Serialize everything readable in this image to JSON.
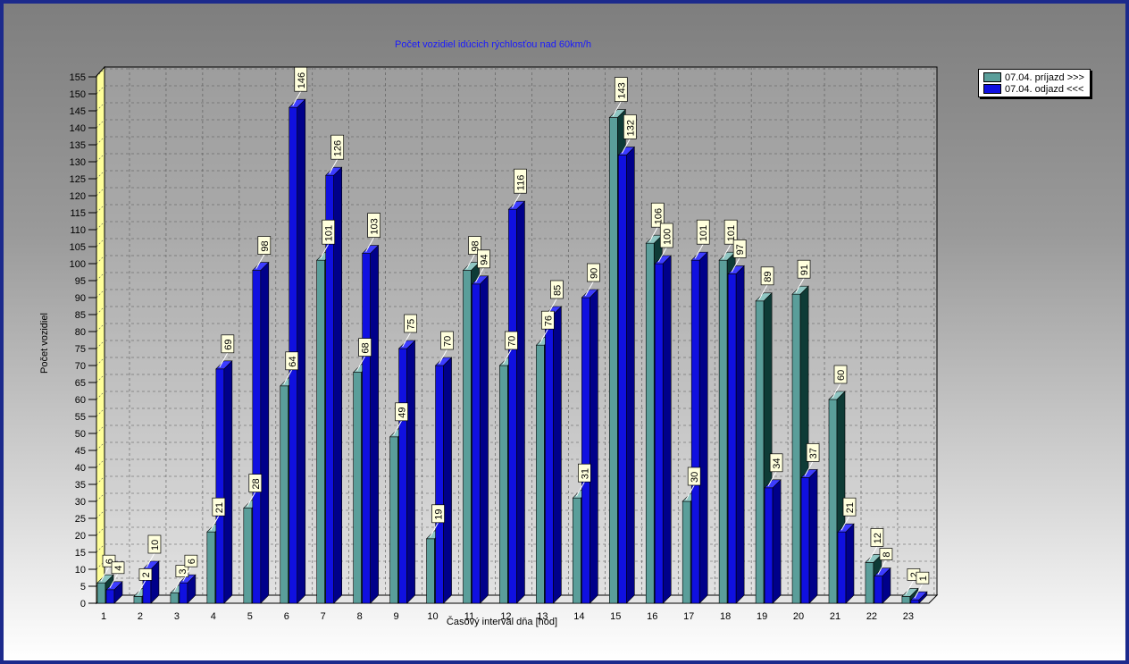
{
  "colors": {
    "series1": "#5a9e9a",
    "series1_side": "#0e3b36",
    "series2": "#1010e0",
    "series2_side": "#00008a",
    "frame": "#1c2a8c",
    "wall_left": "#ffff99",
    "title": "#1a1aff"
  },
  "legend": {
    "items": [
      {
        "label": "07.04.  príjazd >>>",
        "color": "#5a9e9a"
      },
      {
        "label": "07.04.  odjazd <<<",
        "color": "#1010e0"
      }
    ],
    "placement": "top-right"
  },
  "chart_data": {
    "type": "bar",
    "title": "Počet vozidiel idúcich rýchlosťou nad 60km/h",
    "xlabel": "Časový interval dňa [hod]",
    "ylabel": "Počet vozidiel",
    "ylim": [
      0,
      155
    ],
    "yticks": [
      0,
      5,
      10,
      15,
      20,
      25,
      30,
      35,
      40,
      45,
      50,
      55,
      60,
      65,
      70,
      75,
      80,
      85,
      90,
      95,
      100,
      105,
      110,
      115,
      120,
      125,
      130,
      135,
      140,
      145,
      150,
      155
    ],
    "grid": true,
    "legend_position": "top-right",
    "categories": [
      "1",
      "2",
      "3",
      "4",
      "5",
      "6",
      "7",
      "8",
      "9",
      "10",
      "11",
      "12",
      "13",
      "14",
      "15",
      "16",
      "17",
      "18",
      "19",
      "20",
      "21",
      "22",
      "23"
    ],
    "series": [
      {
        "name": "07.04.  príjazd >>>",
        "values": [
          6,
          2,
          3,
          21,
          28,
          64,
          101,
          68,
          49,
          19,
          98,
          70,
          76,
          31,
          143,
          106,
          30,
          101,
          89,
          91,
          60,
          12,
          2
        ]
      },
      {
        "name": "07.04.  odjazd <<<",
        "values": [
          4,
          10,
          6,
          69,
          98,
          146,
          126,
          103,
          75,
          70,
          94,
          116,
          85,
          90,
          132,
          100,
          101,
          97,
          34,
          37,
          21,
          8,
          1
        ]
      }
    ]
  }
}
